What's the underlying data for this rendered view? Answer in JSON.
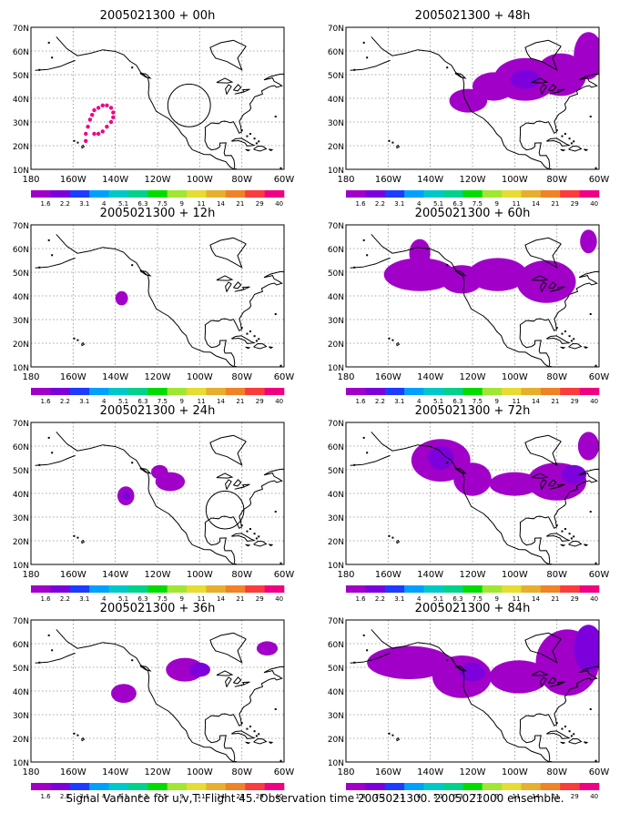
{
  "footer_caption": "Signal Variance for u,v,T. Flight 45. Observation time 2005021300. 2005021000 ensemble.",
  "colorbar": {
    "labels": [
      "1.6",
      "2.2",
      "3.1",
      "4",
      "5.1",
      "6.3",
      "7.5",
      "9",
      "11",
      "14",
      "21",
      "29",
      "40"
    ],
    "colors": [
      "#a000c8",
      "#7d00dc",
      "#1e3cff",
      "#00a0ff",
      "#00c8c8",
      "#00d28c",
      "#00dc00",
      "#a0e632",
      "#e6dc32",
      "#e6af2d",
      "#f08228",
      "#fa3c3c",
      "#f00082"
    ]
  },
  "map": {
    "x_ticks": [
      "180",
      "160W",
      "140W",
      "120W",
      "100W",
      "80W",
      "60W"
    ],
    "y_ticks": [
      "10N",
      "20N",
      "30N",
      "40N",
      "50N",
      "60N",
      "70N"
    ],
    "grid": "dotted",
    "coast_color": "#000000"
  },
  "chart_data": [
    {
      "type": "heatmap",
      "title": "2005021300 + 00h",
      "xlim": [
        -180,
        -60
      ],
      "ylim": [
        10,
        70
      ],
      "blobs": [],
      "rings": [
        {
          "lon": -105,
          "lat": 37,
          "r": 9
        }
      ],
      "points": [
        [
          -154,
          22
        ],
        [
          -154,
          25
        ],
        [
          -153,
          28
        ],
        [
          -152,
          31
        ],
        [
          -151,
          33
        ],
        [
          -150,
          35
        ],
        [
          -148,
          36
        ],
        [
          -146,
          37
        ],
        [
          -144,
          37
        ],
        [
          -142,
          36
        ],
        [
          -141,
          34
        ],
        [
          -141,
          32
        ],
        [
          -142,
          30
        ],
        [
          -144,
          28
        ],
        [
          -146,
          26
        ],
        [
          -148,
          25
        ],
        [
          -150,
          25
        ]
      ]
    },
    {
      "type": "heatmap",
      "title": "2005021300 + 48h",
      "xlim": [
        -180,
        -60
      ],
      "ylim": [
        10,
        70
      ],
      "blobs": [
        {
          "lon": -122,
          "lat": 39,
          "rx": 9,
          "ry": 5,
          "level": 0
        },
        {
          "lon": -110,
          "lat": 45,
          "rx": 10,
          "ry": 6,
          "level": 0
        },
        {
          "lon": -95,
          "lat": 48,
          "rx": 15,
          "ry": 9,
          "level": 0
        },
        {
          "lon": -78,
          "lat": 50,
          "rx": 12,
          "ry": 9,
          "level": 0
        },
        {
          "lon": -65,
          "lat": 58,
          "rx": 7,
          "ry": 10,
          "level": 0
        },
        {
          "lon": -95,
          "lat": 48,
          "rx": 7,
          "ry": 4,
          "level": 1
        }
      ],
      "rings": [],
      "points": []
    },
    {
      "type": "heatmap",
      "title": "2005021300 + 12h",
      "xlim": [
        -180,
        -60
      ],
      "ylim": [
        10,
        70
      ],
      "blobs": [
        {
          "lon": -137,
          "lat": 39,
          "rx": 3,
          "ry": 3,
          "level": 0
        }
      ],
      "rings": [],
      "points": []
    },
    {
      "type": "heatmap",
      "title": "2005021300 + 60h",
      "xlim": [
        -180,
        -60
      ],
      "ylim": [
        10,
        70
      ],
      "blobs": [
        {
          "lon": -145,
          "lat": 49,
          "rx": 17,
          "ry": 7,
          "level": 0
        },
        {
          "lon": -125,
          "lat": 47,
          "rx": 10,
          "ry": 6,
          "level": 0
        },
        {
          "lon": -108,
          "lat": 49,
          "rx": 14,
          "ry": 7,
          "level": 0
        },
        {
          "lon": -85,
          "lat": 46,
          "rx": 14,
          "ry": 9,
          "level": 0
        },
        {
          "lon": -145,
          "lat": 58,
          "rx": 5,
          "ry": 6,
          "level": 0
        },
        {
          "lon": -65,
          "lat": 63,
          "rx": 4,
          "ry": 5,
          "level": 0
        }
      ],
      "rings": [],
      "points": []
    },
    {
      "type": "heatmap",
      "title": "2005021300 + 24h",
      "xlim": [
        -180,
        -60
      ],
      "ylim": [
        10,
        70
      ],
      "blobs": [
        {
          "lon": -135,
          "lat": 39,
          "rx": 4,
          "ry": 4,
          "level": 0
        },
        {
          "lon": -135,
          "lat": 39,
          "rx": 2,
          "ry": 2,
          "level": 1
        },
        {
          "lon": -114,
          "lat": 45,
          "rx": 7,
          "ry": 4,
          "level": 0
        },
        {
          "lon": -119,
          "lat": 49,
          "rx": 4,
          "ry": 3,
          "level": 0
        }
      ],
      "rings": [
        {
          "lon": -88,
          "lat": 33,
          "r": 8
        }
      ],
      "points": []
    },
    {
      "type": "heatmap",
      "title": "2005021300 + 72h",
      "xlim": [
        -180,
        -60
      ],
      "ylim": [
        10,
        70
      ],
      "blobs": [
        {
          "lon": -135,
          "lat": 54,
          "rx": 14,
          "ry": 9,
          "level": 0
        },
        {
          "lon": -135,
          "lat": 55,
          "rx": 6,
          "ry": 5,
          "level": 1
        },
        {
          "lon": -120,
          "lat": 46,
          "rx": 9,
          "ry": 7,
          "level": 0
        },
        {
          "lon": -100,
          "lat": 44,
          "rx": 12,
          "ry": 5,
          "level": 0
        },
        {
          "lon": -80,
          "lat": 45,
          "rx": 14,
          "ry": 8,
          "level": 0
        },
        {
          "lon": -72,
          "lat": 48,
          "rx": 6,
          "ry": 4,
          "level": 1
        },
        {
          "lon": -65,
          "lat": 60,
          "rx": 5,
          "ry": 6,
          "level": 0
        }
      ],
      "rings": [],
      "points": []
    },
    {
      "type": "heatmap",
      "title": "2005021300 + 36h",
      "xlim": [
        -180,
        -60
      ],
      "ylim": [
        10,
        70
      ],
      "blobs": [
        {
          "lon": -136,
          "lat": 39,
          "rx": 6,
          "ry": 4,
          "level": 0
        },
        {
          "lon": -107,
          "lat": 49,
          "rx": 9,
          "ry": 5,
          "level": 0
        },
        {
          "lon": -100,
          "lat": 49,
          "rx": 5,
          "ry": 3,
          "level": 1
        },
        {
          "lon": -68,
          "lat": 58,
          "rx": 5,
          "ry": 3,
          "level": 0
        }
      ],
      "rings": [],
      "points": []
    },
    {
      "type": "heatmap",
      "title": "2005021300 + 84h",
      "xlim": [
        -180,
        -60
      ],
      "ylim": [
        10,
        70
      ],
      "blobs": [
        {
          "lon": -150,
          "lat": 52,
          "rx": 20,
          "ry": 7,
          "level": 0
        },
        {
          "lon": -125,
          "lat": 46,
          "rx": 14,
          "ry": 9,
          "level": 0
        },
        {
          "lon": -120,
          "lat": 48,
          "rx": 6,
          "ry": 4,
          "level": 1
        },
        {
          "lon": -98,
          "lat": 46,
          "rx": 14,
          "ry": 7,
          "level": 0
        },
        {
          "lon": -75,
          "lat": 52,
          "rx": 15,
          "ry": 14,
          "level": 0
        },
        {
          "lon": -65,
          "lat": 58,
          "rx": 7,
          "ry": 10,
          "level": 1
        }
      ],
      "rings": [],
      "points": []
    }
  ]
}
